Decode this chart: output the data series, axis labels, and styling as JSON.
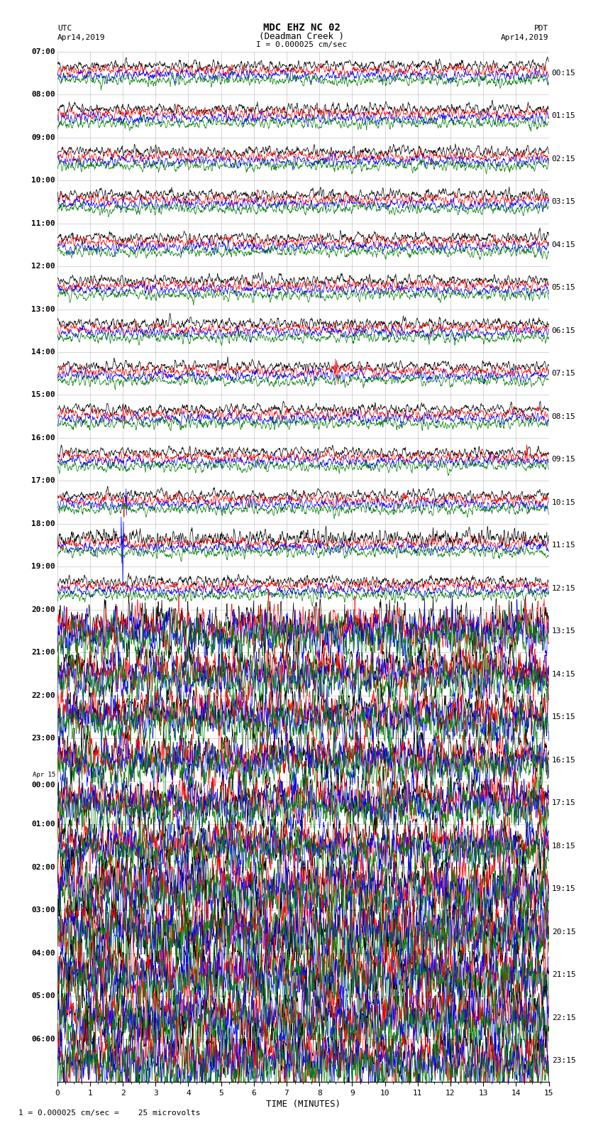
{
  "title_line1": "MDC EHZ NC 02",
  "title_line2": "(Deadman Creek )",
  "title_line3": "I = 0.000025 cm/sec",
  "left_header_line1": "UTC",
  "left_header_line2": "Apr14,2019",
  "right_header_line1": "PDT",
  "right_header_line2": "Apr14,2019",
  "xlabel": "TIME (MINUTES)",
  "footer": "1 = 0.000025 cm/sec =    25 microvolts",
  "left_times": [
    "07:00",
    "08:00",
    "09:00",
    "10:00",
    "11:00",
    "12:00",
    "13:00",
    "14:00",
    "15:00",
    "16:00",
    "17:00",
    "18:00",
    "19:00",
    "20:00",
    "21:00",
    "22:00",
    "23:00",
    "Apr 15\n00:00",
    "01:00",
    "02:00",
    "03:00",
    "04:00",
    "05:00",
    "06:00"
  ],
  "right_times": [
    "00:15",
    "01:15",
    "02:15",
    "03:15",
    "04:15",
    "05:15",
    "06:15",
    "07:15",
    "08:15",
    "09:15",
    "10:15",
    "11:15",
    "12:15",
    "13:15",
    "14:15",
    "15:15",
    "16:15",
    "17:15",
    "18:15",
    "19:15",
    "20:15",
    "21:15",
    "22:15",
    "23:15"
  ],
  "num_rows": 24,
  "traces_per_row": 4,
  "colors": [
    "black",
    "red",
    "blue",
    "green"
  ],
  "bg_color": "#ffffff",
  "grid_color": "#999999",
  "x_ticks": [
    0,
    1,
    2,
    3,
    4,
    5,
    6,
    7,
    8,
    9,
    10,
    11,
    12,
    13,
    14,
    15
  ],
  "figsize": [
    8.5,
    16.13
  ],
  "dpi": 100
}
